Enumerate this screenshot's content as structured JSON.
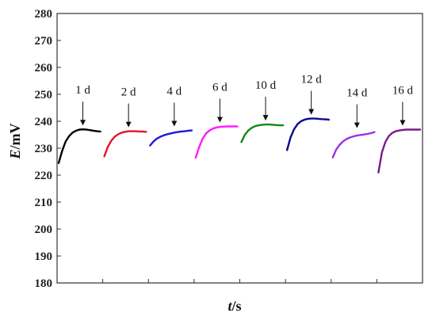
{
  "chart_data": {
    "type": "line",
    "xlabel": {
      "italic": "t",
      "unit": "/s"
    },
    "ylabel": {
      "italic": "E",
      "unit": "/mV"
    },
    "ylim": [
      180,
      280
    ],
    "yticks": [
      "180",
      "190",
      "200",
      "210",
      "220",
      "230",
      "240",
      "250",
      "260",
      "270",
      "280"
    ],
    "grid": false,
    "legend": "none",
    "segments": [
      {
        "label": "1 d",
        "color": "#000000",
        "values": [
          224.5,
          229,
          232.5,
          234.5,
          235.8,
          236.5,
          236.9,
          237.0,
          236.9,
          236.7,
          236.5,
          236.3,
          236.2
        ]
      },
      {
        "label": "2 d",
        "color": "#e8112d",
        "values": [
          227.0,
          230.5,
          232.8,
          234.3,
          235.2,
          235.8,
          236.1,
          236.3,
          236.3,
          236.3,
          236.2,
          236.2,
          236.1
        ]
      },
      {
        "label": "4 d",
        "color": "#1a1adb",
        "values": [
          231.0,
          232.5,
          233.6,
          234.3,
          234.8,
          235.2,
          235.5,
          235.8,
          236.0,
          236.2,
          236.3,
          236.5,
          236.6
        ]
      },
      {
        "label": "6 d",
        "color": "#ff1aff",
        "values": [
          226.5,
          230.5,
          233.5,
          235.5,
          236.6,
          237.3,
          237.7,
          237.9,
          238.0,
          238.1,
          238.1,
          238.1,
          238.1
        ]
      },
      {
        "label": "10 d",
        "color": "#118a11",
        "values": [
          232.3,
          235.0,
          236.6,
          237.6,
          238.2,
          238.5,
          238.7,
          238.8,
          238.8,
          238.7,
          238.6,
          238.5,
          238.5
        ]
      },
      {
        "label": "12 d",
        "color": "#0a0a8c",
        "values": [
          229.3,
          234.0,
          237.0,
          238.9,
          240.0,
          240.6,
          240.9,
          241.0,
          241.0,
          240.9,
          240.8,
          240.7,
          240.6
        ]
      },
      {
        "label": "14 d",
        "color": "#9b30e6",
        "values": [
          226.6,
          229.5,
          231.3,
          232.6,
          233.4,
          234.0,
          234.4,
          234.7,
          234.9,
          235.1,
          235.3,
          235.6,
          236.0
        ]
      },
      {
        "label": "16 d",
        "color": "#7a1a8e",
        "values": [
          221.0,
          228.5,
          232.3,
          234.5,
          235.7,
          236.3,
          236.6,
          236.8,
          236.9,
          236.9,
          236.9,
          236.9,
          236.9
        ]
      }
    ]
  }
}
